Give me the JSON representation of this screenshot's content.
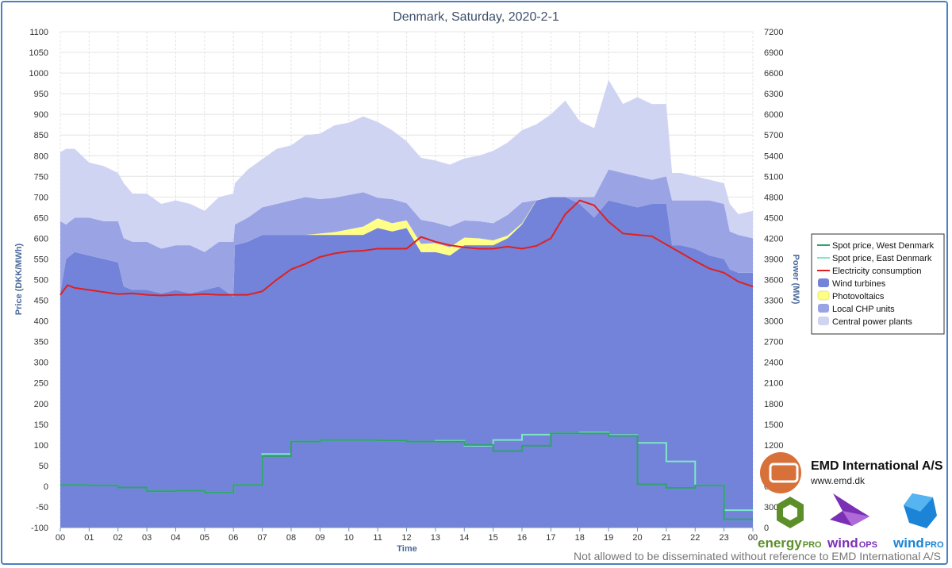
{
  "chart_data": {
    "type": "area",
    "title": "Denmark, Saturday, 2020-2-1",
    "xlabel": "Time",
    "ylabel_left": "Price (DKK/MWh)",
    "ylabel_right": "Power (MW)",
    "x_ticks": [
      "00",
      "01",
      "02",
      "03",
      "04",
      "05",
      "06",
      "07",
      "08",
      "09",
      "10",
      "11",
      "12",
      "13",
      "14",
      "15",
      "16",
      "17",
      "18",
      "19",
      "20",
      "21",
      "22",
      "23",
      "00"
    ],
    "left_axis": {
      "min": -100,
      "max": 1100,
      "step": 50
    },
    "right_axis": {
      "min": 0,
      "max": 7200,
      "step": 300
    },
    "left_ticks": [
      "-100",
      "-50",
      "0",
      "50",
      "100",
      "150",
      "200",
      "250",
      "300",
      "350",
      "400",
      "450",
      "500",
      "550",
      "600",
      "650",
      "700",
      "750",
      "800",
      "850",
      "900",
      "950",
      "1000",
      "1050",
      "1100"
    ],
    "right_ticks": [
      "0",
      "300",
      "600",
      "900",
      "1200",
      "1500",
      "1800",
      "2100",
      "2400",
      "2700",
      "3000",
      "3300",
      "3600",
      "3900",
      "4200",
      "4500",
      "4800",
      "5100",
      "5400",
      "5700",
      "6000",
      "6300",
      "6600",
      "6900",
      "7200"
    ],
    "stack_hours": [
      0,
      0.2,
      0.5,
      1,
      1.5,
      2,
      2.2,
      2.5,
      3,
      3.5,
      4,
      4.5,
      5,
      5.5,
      6,
      6.05,
      6.5,
      7,
      7.5,
      8,
      8.5,
      9,
      9.5,
      10,
      10.5,
      11,
      11.5,
      12,
      12.5,
      13,
      13.5,
      14,
      14.5,
      15,
      15.5,
      16,
      16.5,
      17,
      17.5,
      18,
      18.5,
      19,
      19.5,
      20,
      20.5,
      21,
      21.2,
      21.5,
      22,
      22.5,
      23,
      23.2,
      23.5,
      24
    ],
    "series": [
      {
        "name": "Wind turbines",
        "color": "#7283d9",
        "unit": "MW",
        "values": [
          3400,
          3900,
          4000,
          3950,
          3900,
          3850,
          3500,
          3450,
          3450,
          3400,
          3450,
          3400,
          3450,
          3500,
          3350,
          4100,
          4150,
          4250,
          4250,
          4250,
          4250,
          4250,
          4250,
          4250,
          4250,
          4350,
          4300,
          4350,
          4000,
          4000,
          3950,
          4100,
          4100,
          4100,
          4200,
          4400,
          4750,
          4800,
          4800,
          4700,
          4500,
          4750,
          4700,
          4650,
          4700,
          4700,
          4100,
          4100,
          4050,
          3950,
          3900,
          3750,
          3700,
          3700
        ]
      },
      {
        "name": "Photovoltaics",
        "color": "#ffff88",
        "unit": "MW",
        "values": [
          0,
          0,
          0,
          0,
          0,
          0,
          0,
          0,
          0,
          0,
          0,
          0,
          0,
          0,
          0,
          0,
          0,
          0,
          0,
          0,
          0,
          20,
          40,
          80,
          120,
          140,
          120,
          110,
          120,
          130,
          120,
          110,
          100,
          70,
          40,
          20,
          5,
          0,
          0,
          0,
          0,
          0,
          0,
          0,
          0,
          0,
          0,
          0,
          0,
          0,
          0,
          0,
          0,
          0
        ]
      },
      {
        "name": "Local CHP units",
        "color": "#9aa4e5",
        "unit": "MW",
        "values": [
          1050,
          500,
          500,
          550,
          550,
          600,
          700,
          700,
          700,
          650,
          650,
          700,
          550,
          650,
          800,
          300,
          350,
          400,
          450,
          500,
          550,
          500,
          500,
          500,
          500,
          300,
          350,
          250,
          350,
          300,
          300,
          250,
          250,
          250,
          300,
          300,
          0,
          0,
          0,
          100,
          300,
          450,
          450,
          450,
          350,
          400,
          650,
          650,
          700,
          800,
          800,
          550,
          550,
          500
        ]
      },
      {
        "name": "Central power plants",
        "color": "#d0d4f3",
        "unit": "MW",
        "values": [
          1000,
          1100,
          1000,
          800,
          800,
          700,
          800,
          700,
          700,
          650,
          650,
          600,
          600,
          650,
          700,
          600,
          700,
          700,
          800,
          800,
          900,
          950,
          1050,
          1050,
          1100,
          1100,
          1000,
          900,
          900,
          900,
          900,
          900,
          950,
          1050,
          1050,
          1050,
          1100,
          1200,
          1400,
          1100,
          1000,
          1300,
          1000,
          1150,
          1100,
          1050,
          400,
          400,
          350,
          300,
          300,
          400,
          300,
          400
        ]
      }
    ],
    "consumption": {
      "name": "Electricity consumption",
      "color": "#e02020",
      "unit": "MW",
      "hours": [
        0,
        0.25,
        0.5,
        1,
        1.5,
        2,
        2.5,
        3,
        3.5,
        4,
        4.5,
        5,
        5.5,
        6,
        6.5,
        7,
        7.5,
        8,
        8.5,
        9,
        9.5,
        10,
        10.5,
        11,
        11.5,
        12,
        12.5,
        13,
        13.5,
        14,
        14.5,
        15,
        15.5,
        16,
        16.5,
        17,
        17.5,
        18,
        18.5,
        19,
        19.5,
        20,
        20.5,
        21,
        21.5,
        22,
        22.5,
        23,
        23.5,
        24
      ],
      "values": [
        3380,
        3520,
        3480,
        3450,
        3420,
        3390,
        3400,
        3380,
        3370,
        3380,
        3380,
        3390,
        3380,
        3380,
        3380,
        3430,
        3600,
        3750,
        3830,
        3930,
        3980,
        4010,
        4020,
        4050,
        4050,
        4050,
        4220,
        4150,
        4100,
        4070,
        4050,
        4050,
        4080,
        4050,
        4090,
        4200,
        4550,
        4750,
        4680,
        4440,
        4270,
        4250,
        4230,
        4110,
        3990,
        3870,
        3760,
        3700,
        3570,
        3500
      ]
    },
    "spot_west": {
      "name": "Spot price, West Denmark",
      "color": "#2ea36a",
      "unit": "DKK/MWh",
      "hourly": [
        3,
        2,
        -3,
        -12,
        -11,
        -15,
        3,
        73,
        108,
        112,
        112,
        111,
        108,
        108,
        100,
        85,
        98,
        128,
        128,
        122,
        5,
        -4,
        2,
        -80
      ]
    },
    "spot_east": {
      "name": "Spot price, East Denmark",
      "color": "#7de8c6",
      "unit": "DKK/MWh",
      "hourly": [
        3,
        2,
        -3,
        -12,
        -11,
        -15,
        3,
        78,
        108,
        112,
        112,
        111,
        108,
        110,
        98,
        112,
        125,
        128,
        130,
        124,
        105,
        60,
        2,
        -58
      ]
    }
  },
  "legend_labels": [
    "Spot price, West Denmark",
    "Spot price, East Denmark",
    "Electricity consumption",
    "Wind turbines",
    "Photovoltaics",
    "Local CHP units",
    "Central power plants"
  ],
  "logos": {
    "company": "EMD International  A/S",
    "url": "www.emd.dk",
    "energypro_a": "energy",
    "energypro_b": "PRO",
    "windops_a": "wind",
    "windops_b": "OPS",
    "windpro_a": "wind",
    "windpro_b": "PRO"
  },
  "disclaimer": "Not allowed to be disseminated without reference to EMD International A/S",
  "colors": {
    "frame": "#4a7fc4",
    "grid": "#e2e2e2",
    "orange": "#d8703a",
    "green": "#5c8f2a",
    "purple": "#7a2fb5",
    "blue": "#1b84d6"
  }
}
